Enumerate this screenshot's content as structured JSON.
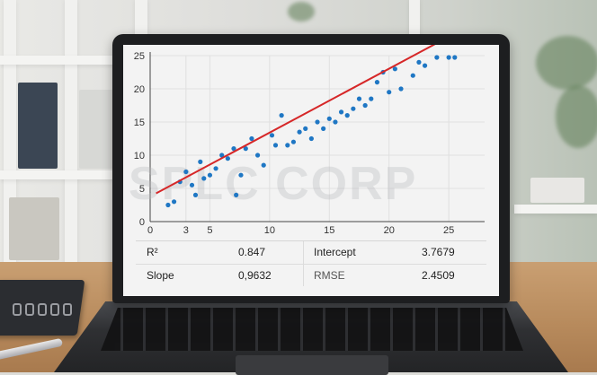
{
  "chart_data": {
    "type": "scatter",
    "title": "",
    "xlabel": "",
    "ylabel": "",
    "xlim": [
      0,
      28
    ],
    "ylim": [
      0,
      25
    ],
    "xticks": [
      0,
      3,
      5,
      10,
      15,
      20,
      25
    ],
    "yticks": [
      0,
      5,
      10,
      15,
      20,
      25
    ],
    "grid": true,
    "point_color": "#1f77c4",
    "line_color": "#d62728",
    "fit_line": {
      "slope": 0.9632,
      "intercept": 3.7679
    },
    "x": [
      1.5,
      2.0,
      2.5,
      3.0,
      3.5,
      3.8,
      4.2,
      4.5,
      5.0,
      5.5,
      6.0,
      6.5,
      7.0,
      7.2,
      7.6,
      8.0,
      8.5,
      9.0,
      9.5,
      10.2,
      10.5,
      11.0,
      11.5,
      12.0,
      12.5,
      13.0,
      13.5,
      14.0,
      14.5,
      15.0,
      15.5,
      16.0,
      16.5,
      17.0,
      17.5,
      18.0,
      18.5,
      19.0,
      19.5,
      20.0,
      20.5,
      21.0,
      22.0,
      22.5,
      23.0,
      24.0,
      25.0,
      25.5
    ],
    "y": [
      2.5,
      3.0,
      6.0,
      7.5,
      5.5,
      4.0,
      9.0,
      6.5,
      7.0,
      8.0,
      10.0,
      9.5,
      11.0,
      4.0,
      7.0,
      11.0,
      12.5,
      10.0,
      8.5,
      13.0,
      11.5,
      16.0,
      11.5,
      12.0,
      13.5,
      14.0,
      12.5,
      15.0,
      14.0,
      15.5,
      15.0,
      16.5,
      16.0,
      17.0,
      18.5,
      17.5,
      18.5,
      21.0,
      22.5,
      19.5,
      23.0,
      20.0,
      22.0,
      24.0,
      23.5,
      25.5,
      27.0,
      25.5
    ]
  },
  "watermark": "SPLC CORP",
  "stats": {
    "r2_label": "R²",
    "r2_value": "0.847",
    "slope_label": "Slope",
    "slope_value": "0,9632",
    "intercept_label": "Intercept",
    "intercept_value": "3.7679",
    "rmse_label": "RMSE",
    "rmse_value": "2.4509"
  }
}
